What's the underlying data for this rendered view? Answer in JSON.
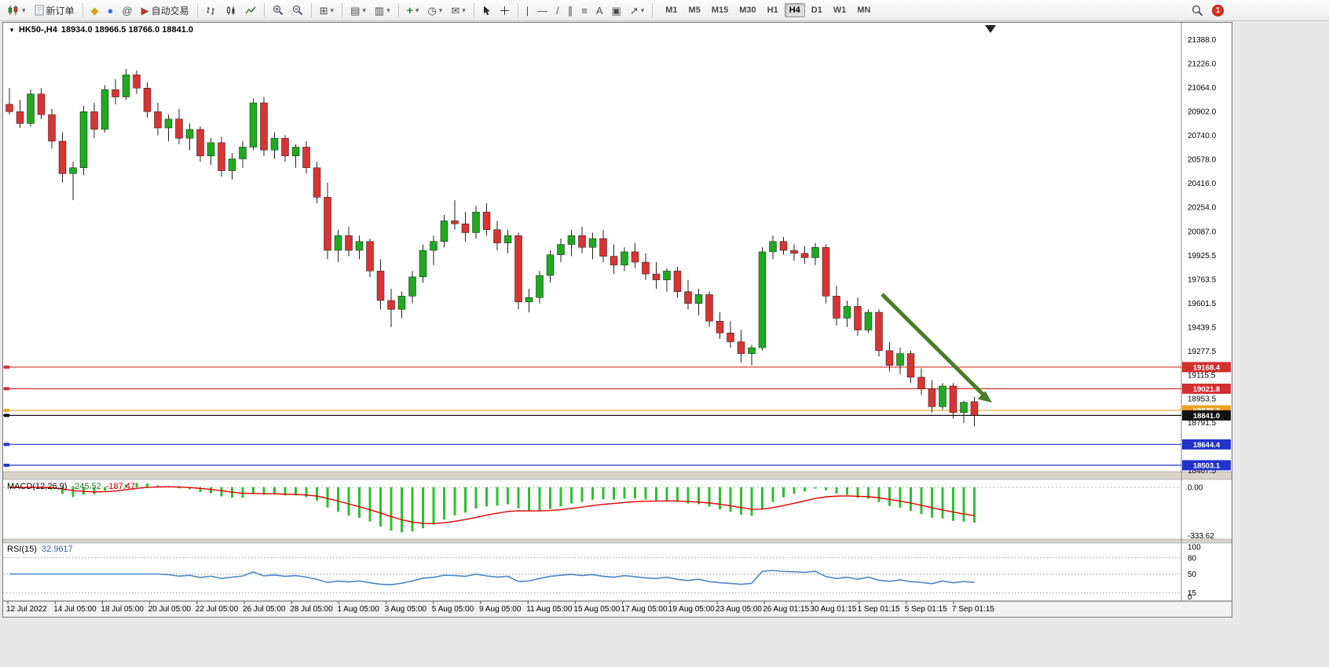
{
  "toolbar": {
    "new_order_label": "新订单",
    "autotrading_label": "自动交易",
    "timeframes": [
      "M1",
      "M5",
      "M15",
      "M30",
      "H1",
      "H4",
      "D1",
      "W1",
      "MN"
    ],
    "active_timeframe": "H4",
    "notification_count": "1",
    "icons": {
      "dropdown": "▾",
      "meta_editor": "◆",
      "community": "●",
      "at_sign": "@",
      "autotrade_glyph": "▶",
      "tile": "⊞",
      "profile1": "▤",
      "profile2": "▥",
      "indicator_plus": "+",
      "clock": "◷",
      "template": "✉",
      "vline": "|",
      "hline": "—",
      "tline": "/",
      "channel": "∥",
      "fibo": "≡",
      "text_tool": "A",
      "label_tool": "▣",
      "arrow_tool": "↗"
    }
  },
  "chart_header": {
    "collapse_arrow": "▼",
    "symbol": "HK50-,H4",
    "ohlc": "18934.0 18966.5 18766.0 18841.0"
  },
  "macd": {
    "title": "MACD(12,26,9)",
    "value_main": "-245.52",
    "value_signal": "-187.47",
    "axis_labels": [
      "0.00",
      "-333.62"
    ],
    "fast": 12,
    "slow": 26,
    "signal": 9,
    "histogram_color": "#2fbf2f",
    "signal_color": "#e60000"
  },
  "rsi": {
    "title": "RSI(15)",
    "value": "32.9617",
    "period": 15,
    "axis_labels": [
      {
        "text": "100",
        "value": 100
      },
      {
        "text": "80",
        "value": 80
      },
      {
        "text": "50",
        "value": 50
      },
      {
        "text": "15",
        "value": 15
      },
      {
        "text": "0",
        "value": 0
      }
    ],
    "dashed_levels": [
      80,
      50,
      15
    ],
    "line_color": "#4a86c8"
  },
  "chart_data": {
    "type": "candlestick",
    "symbol": "HK50-",
    "timeframe": "H4",
    "up_color": "#1faa1f",
    "down_color": "#d93333",
    "wick_color": "#222222",
    "price_axis_labels": [
      "21388.0",
      "21226.0",
      "21064.0",
      "20902.0",
      "20740.0",
      "20578.0",
      "20416.0",
      "20254.0",
      "20087.0",
      "19925.5",
      "19763.5",
      "19601.5",
      "19439.5",
      "19277.5",
      "19115.5",
      "18953.5",
      "18791.5",
      "18629.5",
      "18467.5"
    ],
    "date_labels": [
      "12 Jul 2022",
      "14 Jul 05:00",
      "18 Jul 05:00",
      "20 Jul 05:00",
      "22 Jul 05:00",
      "26 Jul 05:00",
      "28 Jul 05:00",
      "1 Aug 05:00",
      "3 Aug 05:00",
      "5 Aug 05:00",
      "9 Aug 05:00",
      "11 Aug 05:00",
      "15 Aug 05:00",
      "17 Aug 05:00",
      "19 Aug 05:00",
      "23 Aug 05:00",
      "26 Aug 01:15",
      "30 Aug 01:15",
      "1 Sep 01:15",
      "5 Sep 01:15",
      "7 Sep 01:15"
    ],
    "levels": [
      {
        "label": "19168.4",
        "value": 19168.4,
        "color": "#d32f2f",
        "type": "resistance-line"
      },
      {
        "label": "19021.8",
        "value": 19021.8,
        "color": "#d32f2f",
        "type": "resistance-line"
      },
      {
        "label": "18875.3",
        "value": 18875.3,
        "color": "#efa126",
        "type": "support-line"
      },
      {
        "label": "18841.0",
        "value": 18841.0,
        "color": "#111111",
        "type": "current-price-line"
      },
      {
        "label": "18644.4",
        "value": 18644.4,
        "color": "#2233cc",
        "type": "support-line"
      },
      {
        "label": "18503.1",
        "value": 18503.1,
        "color": "#2233cc",
        "type": "support-line"
      }
    ],
    "trend_arrow": {
      "color": "#4c7c28",
      "direction": "down-right"
    },
    "last_candle": {
      "open": 18934.0,
      "high": 18966.5,
      "low": 18766.0,
      "close": 18841.0
    },
    "candles": [
      [
        20950,
        21060,
        20880,
        20900
      ],
      [
        20900,
        20980,
        20790,
        20820
      ],
      [
        20820,
        21050,
        20800,
        21020
      ],
      [
        21020,
        21060,
        20850,
        20880
      ],
      [
        20880,
        20920,
        20650,
        20700
      ],
      [
        20700,
        20760,
        20420,
        20480
      ],
      [
        20480,
        20560,
        20300,
        20520
      ],
      [
        20520,
        20940,
        20470,
        20900
      ],
      [
        20900,
        20960,
        20720,
        20780
      ],
      [
        20780,
        21080,
        20760,
        21050
      ],
      [
        21050,
        21120,
        20950,
        21000
      ],
      [
        21000,
        21190,
        20980,
        21150
      ],
      [
        21150,
        21180,
        21020,
        21060
      ],
      [
        21060,
        21100,
        20860,
        20900
      ],
      [
        20900,
        20960,
        20740,
        20790
      ],
      [
        20790,
        20880,
        20700,
        20850
      ],
      [
        20850,
        20920,
        20680,
        20720
      ],
      [
        20720,
        20820,
        20640,
        20780
      ],
      [
        20780,
        20800,
        20560,
        20600
      ],
      [
        20600,
        20720,
        20540,
        20690
      ],
      [
        20690,
        20730,
        20460,
        20500
      ],
      [
        20500,
        20620,
        20440,
        20580
      ],
      [
        20580,
        20700,
        20520,
        20660
      ],
      [
        20660,
        20990,
        20640,
        20960
      ],
      [
        20960,
        21000,
        20600,
        20640
      ],
      [
        20640,
        20760,
        20580,
        20720
      ],
      [
        20720,
        20740,
        20560,
        20600
      ],
      [
        20600,
        20680,
        20520,
        20660
      ],
      [
        20660,
        20700,
        20480,
        20520
      ],
      [
        20520,
        20560,
        20280,
        20320
      ],
      [
        20320,
        20420,
        19900,
        19960
      ],
      [
        19960,
        20100,
        19880,
        20060
      ],
      [
        20060,
        20120,
        19920,
        19960
      ],
      [
        19960,
        20060,
        19900,
        20020
      ],
      [
        20020,
        20040,
        19780,
        19820
      ],
      [
        19820,
        19900,
        19560,
        19620
      ],
      [
        19620,
        19700,
        19440,
        19560
      ],
      [
        19560,
        19680,
        19500,
        19650
      ],
      [
        19650,
        19820,
        19600,
        19780
      ],
      [
        19780,
        20000,
        19740,
        19960
      ],
      [
        19960,
        20060,
        19860,
        20020
      ],
      [
        20020,
        20200,
        19980,
        20160
      ],
      [
        20160,
        20300,
        20100,
        20140
      ],
      [
        20140,
        20220,
        20020,
        20080
      ],
      [
        20080,
        20260,
        20040,
        20220
      ],
      [
        20220,
        20280,
        20060,
        20100
      ],
      [
        20100,
        20160,
        19960,
        20010
      ],
      [
        20010,
        20100,
        19940,
        20060
      ],
      [
        20060,
        20080,
        19560,
        19610
      ],
      [
        19610,
        19700,
        19540,
        19640
      ],
      [
        19640,
        19820,
        19600,
        19790
      ],
      [
        19790,
        19960,
        19740,
        19930
      ],
      [
        19930,
        20040,
        19880,
        20000
      ],
      [
        20000,
        20100,
        19920,
        20060
      ],
      [
        20060,
        20120,
        19940,
        19980
      ],
      [
        19980,
        20080,
        19900,
        20040
      ],
      [
        20040,
        20100,
        19880,
        19920
      ],
      [
        19920,
        20000,
        19800,
        19860
      ],
      [
        19860,
        19980,
        19820,
        19950
      ],
      [
        19950,
        20010,
        19840,
        19880
      ],
      [
        19880,
        19940,
        19760,
        19800
      ],
      [
        19800,
        19880,
        19700,
        19760
      ],
      [
        19760,
        19840,
        19680,
        19820
      ],
      [
        19820,
        19850,
        19640,
        19680
      ],
      [
        19680,
        19760,
        19560,
        19600
      ],
      [
        19600,
        19700,
        19520,
        19660
      ],
      [
        19660,
        19680,
        19440,
        19480
      ],
      [
        19480,
        19540,
        19360,
        19400
      ],
      [
        19400,
        19480,
        19300,
        19340
      ],
      [
        19340,
        19420,
        19200,
        19260
      ],
      [
        19260,
        19320,
        19180,
        19300
      ],
      [
        19300,
        19980,
        19280,
        19950
      ],
      [
        19950,
        20060,
        19900,
        20020
      ],
      [
        20020,
        20050,
        19930,
        19960
      ],
      [
        19960,
        20000,
        19890,
        19940
      ],
      [
        19940,
        19990,
        19870,
        19910
      ],
      [
        19910,
        20010,
        19860,
        19980
      ],
      [
        19980,
        20000,
        19600,
        19650
      ],
      [
        19650,
        19720,
        19450,
        19500
      ],
      [
        19500,
        19620,
        19440,
        19580
      ],
      [
        19580,
        19640,
        19380,
        19420
      ],
      [
        19420,
        19560,
        19400,
        19540
      ],
      [
        19540,
        19560,
        19240,
        19280
      ],
      [
        19280,
        19340,
        19140,
        19180
      ],
      [
        19180,
        19300,
        19120,
        19260
      ],
      [
        19260,
        19280,
        19060,
        19100
      ],
      [
        19100,
        19160,
        18980,
        19020
      ],
      [
        19020,
        19080,
        18860,
        18900
      ],
      [
        18900,
        19060,
        18880,
        19040
      ],
      [
        19040,
        19060,
        18820,
        18860
      ],
      [
        18860,
        18940,
        18790,
        18930
      ],
      [
        18934,
        18966.5,
        18766,
        18841
      ]
    ]
  }
}
